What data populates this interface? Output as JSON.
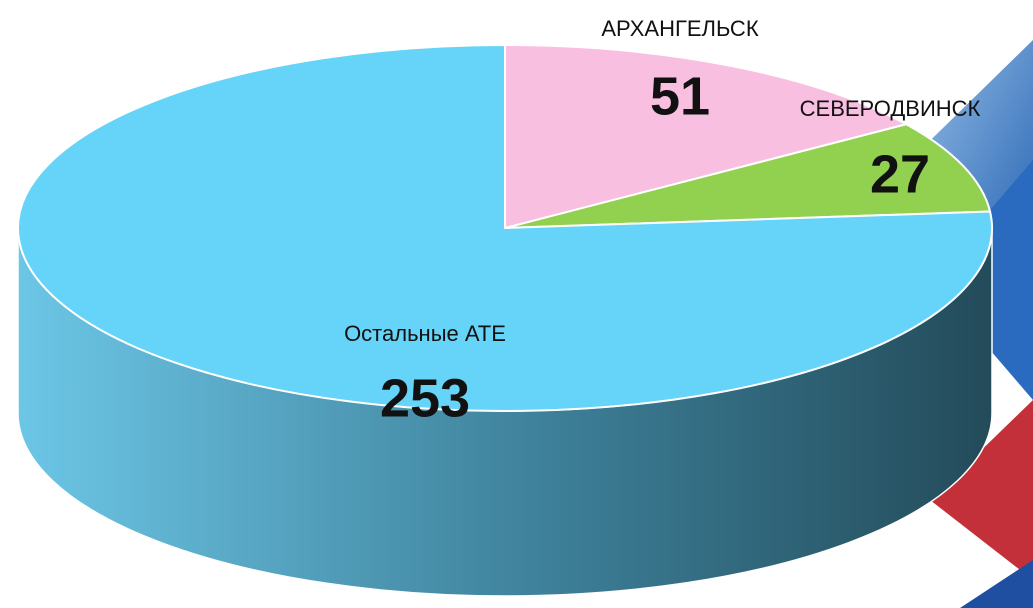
{
  "chart_data": {
    "type": "pie3d",
    "categories": [
      "АРХАНГЕЛЬСК",
      "СЕВЕРОДВИНСК",
      "Остальные АТЕ"
    ],
    "values": [
      51,
      27,
      253
    ],
    "colors": [
      "#f9bfe0",
      "#92d050",
      "#66d4f8"
    ]
  }
}
